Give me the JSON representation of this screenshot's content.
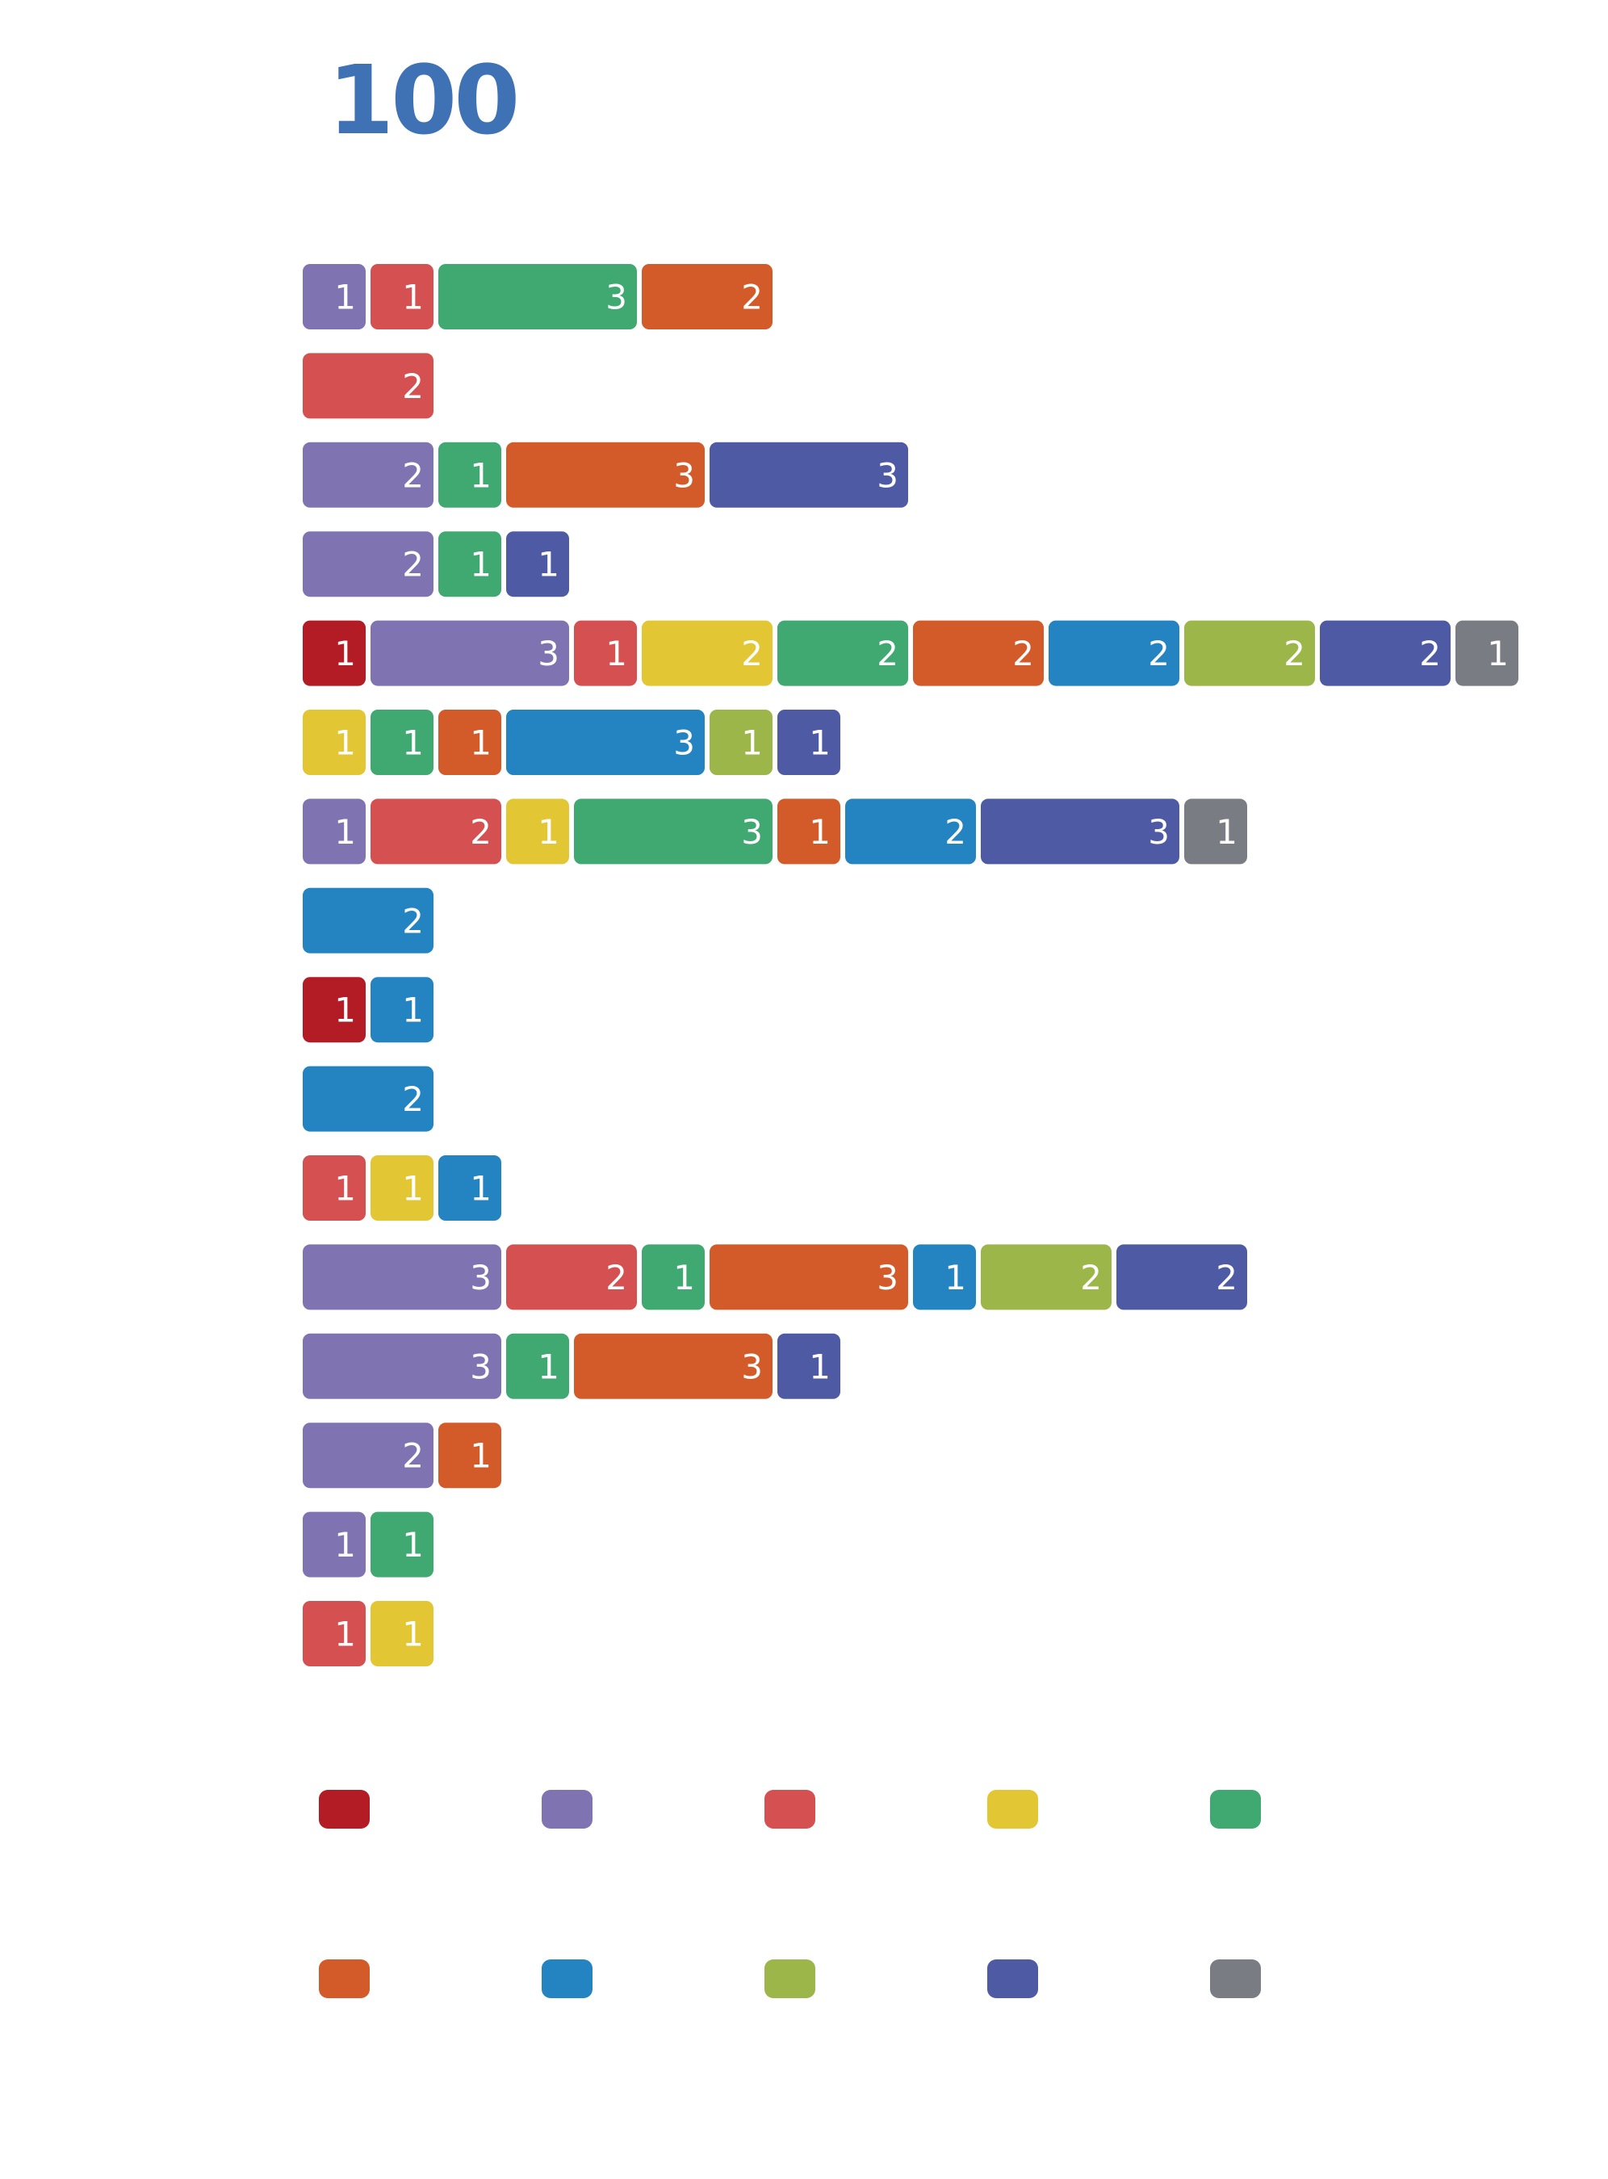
{
  "chart_data": {
    "type": "bar",
    "title": "100",
    "title_color": "#3f72b5",
    "category_colors": [
      "#b31c24",
      "#7f73b1",
      "#d45051",
      "#e2c634",
      "#40a871",
      "#d35b2a",
      "#2483c1",
      "#9db64a",
      "#4e5aa4",
      "#7a7c84"
    ],
    "rows": [
      {
        "segments": [
          {
            "color": 1,
            "value": 1
          },
          {
            "color": 2,
            "value": 1
          },
          {
            "color": 4,
            "value": 3
          },
          {
            "color": 5,
            "value": 2
          }
        ]
      },
      {
        "segments": [
          {
            "color": 2,
            "value": 2
          }
        ]
      },
      {
        "segments": [
          {
            "color": 1,
            "value": 2
          },
          {
            "color": 4,
            "value": 1
          },
          {
            "color": 5,
            "value": 3
          },
          {
            "color": 8,
            "value": 3
          }
        ]
      },
      {
        "segments": [
          {
            "color": 1,
            "value": 2
          },
          {
            "color": 4,
            "value": 1
          },
          {
            "color": 8,
            "value": 1
          }
        ]
      },
      {
        "segments": [
          {
            "color": 0,
            "value": 1
          },
          {
            "color": 1,
            "value": 3
          },
          {
            "color": 2,
            "value": 1
          },
          {
            "color": 3,
            "value": 2
          },
          {
            "color": 4,
            "value": 2
          },
          {
            "color": 5,
            "value": 2
          },
          {
            "color": 6,
            "value": 2
          },
          {
            "color": 7,
            "value": 2
          },
          {
            "color": 8,
            "value": 2
          },
          {
            "color": 9,
            "value": 1
          }
        ]
      },
      {
        "segments": [
          {
            "color": 3,
            "value": 1
          },
          {
            "color": 4,
            "value": 1
          },
          {
            "color": 5,
            "value": 1
          },
          {
            "color": 6,
            "value": 3
          },
          {
            "color": 7,
            "value": 1
          },
          {
            "color": 8,
            "value": 1
          }
        ]
      },
      {
        "segments": [
          {
            "color": 1,
            "value": 1
          },
          {
            "color": 2,
            "value": 2
          },
          {
            "color": 3,
            "value": 1
          },
          {
            "color": 4,
            "value": 3
          },
          {
            "color": 5,
            "value": 1
          },
          {
            "color": 6,
            "value": 2
          },
          {
            "color": 8,
            "value": 3
          },
          {
            "color": 9,
            "value": 1
          }
        ]
      },
      {
        "segments": [
          {
            "color": 6,
            "value": 2
          }
        ]
      },
      {
        "segments": [
          {
            "color": 0,
            "value": 1
          },
          {
            "color": 6,
            "value": 1
          }
        ]
      },
      {
        "segments": [
          {
            "color": 6,
            "value": 2
          }
        ]
      },
      {
        "segments": [
          {
            "color": 2,
            "value": 1
          },
          {
            "color": 3,
            "value": 1
          },
          {
            "color": 6,
            "value": 1
          }
        ]
      },
      {
        "segments": [
          {
            "color": 1,
            "value": 3
          },
          {
            "color": 2,
            "value": 2
          },
          {
            "color": 4,
            "value": 1
          },
          {
            "color": 5,
            "value": 3
          },
          {
            "color": 6,
            "value": 1
          },
          {
            "color": 7,
            "value": 2
          },
          {
            "color": 8,
            "value": 2
          }
        ]
      },
      {
        "segments": [
          {
            "color": 1,
            "value": 3
          },
          {
            "color": 4,
            "value": 1
          },
          {
            "color": 5,
            "value": 3
          },
          {
            "color": 8,
            "value": 1
          }
        ]
      },
      {
        "segments": [
          {
            "color": 1,
            "value": 2
          },
          {
            "color": 5,
            "value": 1
          }
        ]
      },
      {
        "segments": [
          {
            "color": 1,
            "value": 1
          },
          {
            "color": 4,
            "value": 1
          }
        ]
      },
      {
        "segments": [
          {
            "color": 2,
            "value": 1
          },
          {
            "color": 3,
            "value": 1
          }
        ]
      }
    ],
    "legend": {
      "swatches": [
        {
          "color": 0
        },
        {
          "color": 1
        },
        {
          "color": 2
        },
        {
          "color": 3
        },
        {
          "color": 4
        },
        {
          "color": 5
        },
        {
          "color": 6
        },
        {
          "color": 7
        },
        {
          "color": 8
        },
        {
          "color": 9
        }
      ]
    }
  }
}
